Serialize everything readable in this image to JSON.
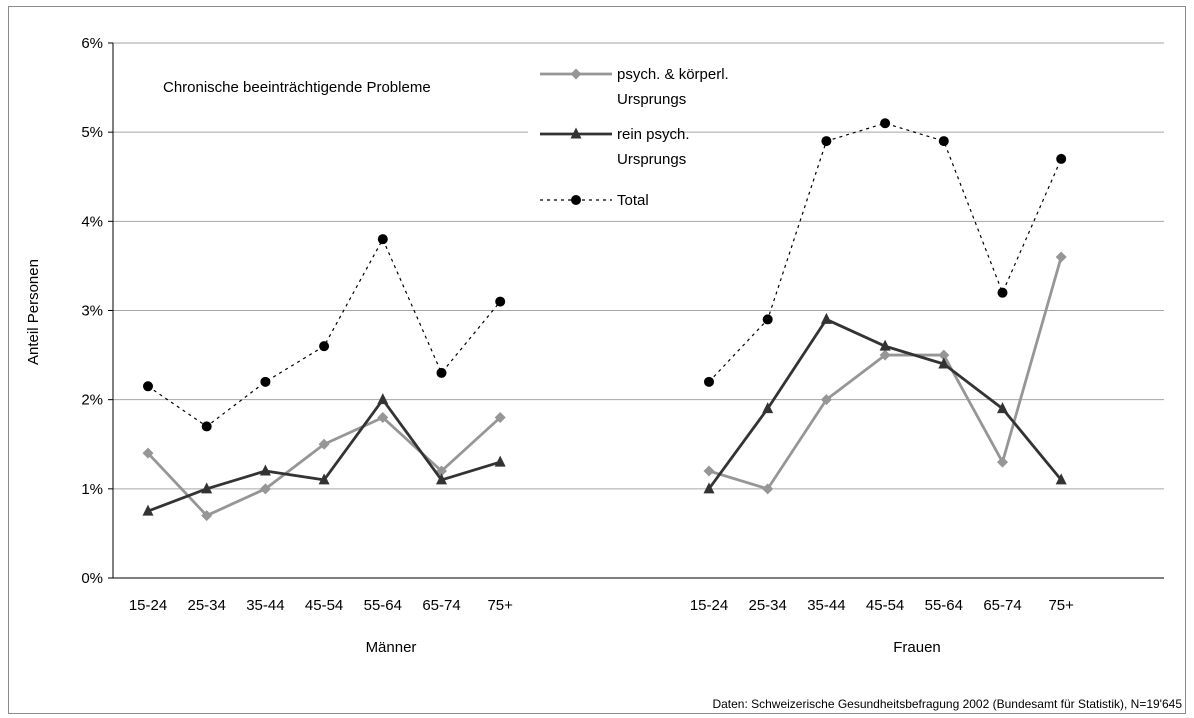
{
  "chart_data": {
    "type": "line",
    "annotation": "Chronische beeinträchtigende Probleme",
    "ylabel": "Anteil Personen",
    "ylim": [
      0,
      6
    ],
    "yticks": [
      "0%",
      "1%",
      "2%",
      "3%",
      "4%",
      "5%",
      "6%"
    ],
    "groups": [
      {
        "name": "Männer",
        "categories": [
          "15-24",
          "25-34",
          "35-44",
          "45-54",
          "55-64",
          "65-74",
          "75+"
        ],
        "series": [
          {
            "name": "psych. & körperl. Ursprungs",
            "color": "#969696",
            "marker": "diamond",
            "values": [
              1.4,
              0.7,
              1.0,
              1.5,
              1.8,
              1.2,
              1.8
            ]
          },
          {
            "name": "rein psych. Ursprungs",
            "color": "#333333",
            "marker": "triangle",
            "values": [
              0.75,
              1.0,
              1.2,
              1.1,
              2.0,
              1.1,
              1.3
            ]
          },
          {
            "name": "Total",
            "color": "#000000",
            "marker": "circle",
            "values": [
              2.15,
              1.7,
              2.2,
              2.6,
              3.8,
              2.3,
              3.1
            ]
          }
        ]
      },
      {
        "name": "Frauen",
        "categories": [
          "15-24",
          "25-34",
          "35-44",
          "45-54",
          "55-64",
          "65-74",
          "75+"
        ],
        "series": [
          {
            "name": "psych. & körperl. Ursprungs",
            "color": "#969696",
            "marker": "diamond",
            "values": [
              1.2,
              1.0,
              2.0,
              2.5,
              2.5,
              1.3,
              3.6
            ]
          },
          {
            "name": "rein psych. Ursprungs",
            "color": "#333333",
            "marker": "triangle",
            "values": [
              1.0,
              1.9,
              2.9,
              2.6,
              2.4,
              1.9,
              1.1
            ]
          },
          {
            "name": "Total",
            "color": "#000000",
            "marker": "circle",
            "values": [
              2.2,
              2.9,
              4.9,
              5.1,
              4.9,
              3.2,
              4.7
            ]
          }
        ]
      }
    ],
    "legend": {
      "placement": "top-center",
      "entries": [
        {
          "line1": "psych. & körperl.",
          "line2": "Ursprungs"
        },
        {
          "line1": "rein psych.",
          "line2": "Ursprungs"
        },
        {
          "line1": "Total",
          "line2": ""
        }
      ]
    },
    "grid": true,
    "source": "Daten: Schweizerische Gesundheitsbefragung 2002 (Bundesamt für Statistik), N=19'645"
  }
}
